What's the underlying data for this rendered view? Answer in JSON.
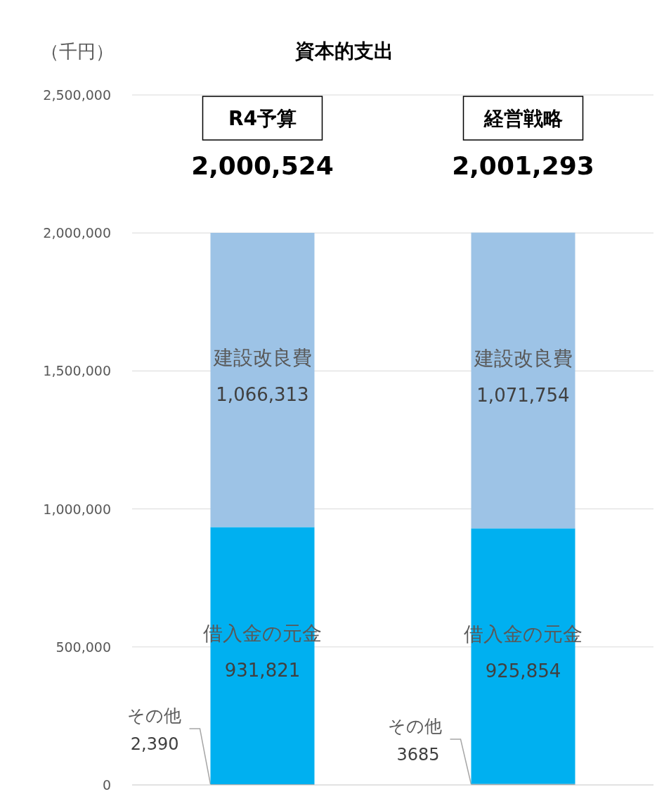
{
  "chart_data": {
    "type": "bar",
    "stacked": true,
    "title": "資本的支出",
    "ylabel": "（千円）",
    "categories": [
      "R4予算",
      "経営戦略"
    ],
    "series": [
      {
        "name": "その他",
        "color": "#7f7f7f",
        "values": [
          2390,
          3685
        ],
        "value_labels": [
          "2,390",
          "3685"
        ]
      },
      {
        "name": "借入金の元金",
        "color": "#00b0f0",
        "values": [
          931821,
          925854
        ],
        "value_labels": [
          "931,821",
          "925,854"
        ]
      },
      {
        "name": "建設改良費",
        "color": "#9dc3e6",
        "values": [
          1066313,
          1071754
        ],
        "value_labels": [
          "1,066,313",
          "1,071,754"
        ]
      }
    ],
    "totals": [
      "2,000,524",
      "2,001,293"
    ],
    "ylim": [
      0,
      2500000
    ],
    "yticks": [
      {
        "value": 0,
        "label": "0"
      },
      {
        "value": 500000,
        "label": "500,000"
      },
      {
        "value": 1000000,
        "label": "1,000,000"
      },
      {
        "value": 1500000,
        "label": "1,500,000"
      },
      {
        "value": 2000000,
        "label": "2,000,000"
      },
      {
        "value": 2500000,
        "label": "2,500,000"
      }
    ],
    "grid": "y"
  }
}
